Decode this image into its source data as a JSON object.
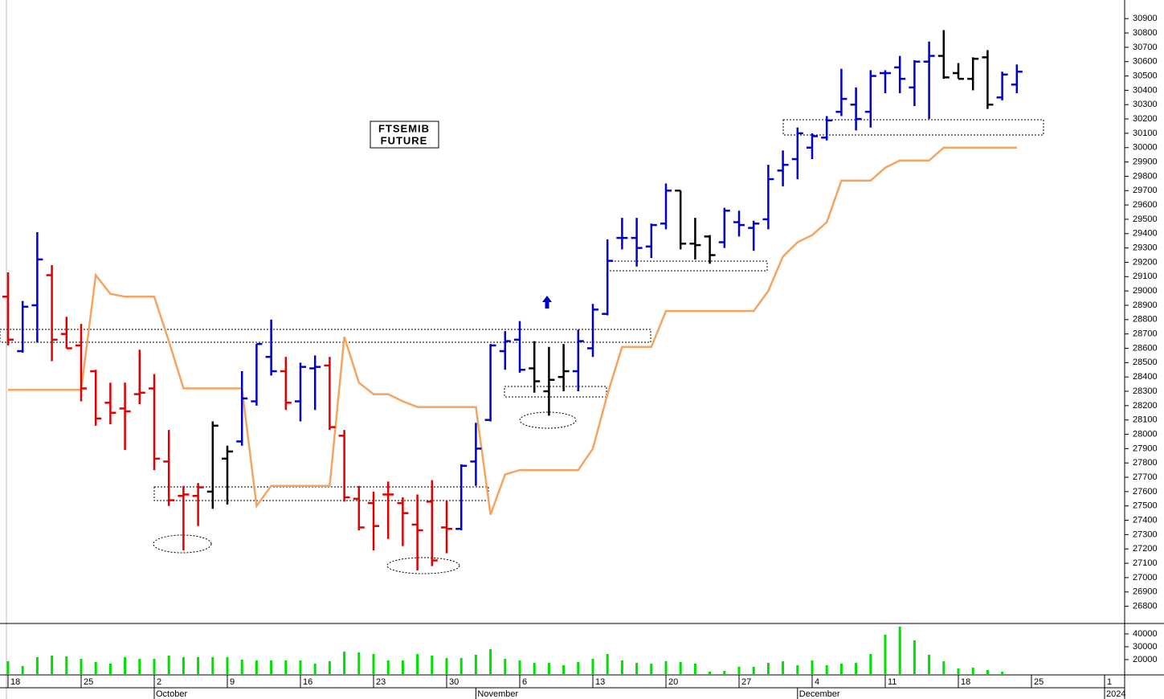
{
  "chart_data": {
    "type": "ohlc",
    "title": "FTSEMIB",
    "subtitle": "FUTURE",
    "categories": [
      "18",
      null,
      null,
      null,
      null,
      "25",
      null,
      null,
      null,
      null,
      "2",
      null,
      null,
      null,
      null,
      "9",
      null,
      null,
      null,
      null,
      "16",
      null,
      null,
      null,
      null,
      "23",
      null,
      null,
      null,
      null,
      "30",
      null,
      null,
      null,
      null,
      "6",
      null,
      null,
      null,
      null,
      "13",
      null,
      null,
      null,
      null,
      "20",
      null,
      null,
      null,
      null,
      "27",
      null,
      null,
      null,
      null,
      "4",
      null,
      null,
      null,
      null,
      "11",
      null,
      null,
      null,
      null,
      "18",
      null,
      null,
      null,
      null,
      "25",
      null,
      null,
      null,
      null,
      "1",
      null
    ],
    "months": [
      null,
      null,
      null,
      null,
      null,
      null,
      null,
      null,
      null,
      null,
      "October",
      null,
      null,
      null,
      null,
      null,
      null,
      null,
      null,
      null,
      null,
      null,
      null,
      null,
      null,
      null,
      null,
      null,
      null,
      null,
      null,
      null,
      "November",
      null,
      null,
      null,
      null,
      null,
      null,
      null,
      null,
      null,
      null,
      null,
      null,
      null,
      null,
      null,
      null,
      null,
      null,
      null,
      null,
      null,
      "December",
      null,
      null,
      null,
      null,
      null,
      null,
      null,
      null,
      null,
      null,
      null,
      null,
      null,
      null,
      null,
      null,
      null,
      null,
      null,
      null,
      "2024",
      null
    ],
    "open": [
      28960,
      28580,
      28900,
      29110,
      28700,
      28620,
      28440,
      28220,
      28180,
      28280,
      28320,
      27810,
      27570,
      27570,
      27600,
      27830,
      27950,
      28230,
      28540,
      28440,
      28230,
      28460,
      28480,
      27990,
      27550,
      27520,
      27580,
      27520,
      27370,
      27530,
      27350,
      27340,
      27810,
      28100,
      28580,
      28660,
      28460,
      28300,
      28400,
      28440,
      28600,
      28840,
      29370,
      29370,
      29310,
      29470,
      29700,
      29330,
      29380,
      29340,
      29480,
      29440,
      29500,
      29840,
      29920,
      30000,
      30070,
      30250,
      30300,
      30250,
      30520,
      30560,
      30420,
      30600,
      30640,
      30520,
      30480,
      30630,
      30350,
      30440,
      null,
      null,
      null,
      null,
      null,
      null,
      null
    ],
    "high": [
      29130,
      28930,
      29410,
      29180,
      28820,
      28770,
      28450,
      28360,
      28360,
      28590,
      28420,
      28030,
      27640,
      27660,
      28090,
      27920,
      28440,
      28630,
      28800,
      28540,
      28500,
      28550,
      28540,
      28030,
      27640,
      27600,
      27670,
      27560,
      27580,
      27680,
      27540,
      27790,
      28080,
      28630,
      28720,
      28790,
      28650,
      28610,
      28630,
      28730,
      28910,
      29360,
      29510,
      29510,
      29470,
      29750,
      29700,
      29510,
      29390,
      29580,
      29560,
      29490,
      29880,
      29980,
      30140,
      30100,
      30220,
      30550,
      30420,
      30540,
      30540,
      30640,
      30610,
      30740,
      30820,
      30590,
      30630,
      30680,
      30530,
      30580,
      null,
      null,
      null,
      null,
      null,
      null,
      null
    ],
    "low": [
      28620,
      28570,
      28640,
      28510,
      28600,
      28230,
      28060,
      28070,
      27890,
      28210,
      27750,
      27500,
      27190,
      27360,
      27480,
      27510,
      27920,
      28200,
      28410,
      28170,
      28090,
      28170,
      28030,
      27530,
      27330,
      27190,
      27270,
      27220,
      27050,
      27080,
      27170,
      27330,
      27640,
      28090,
      28450,
      28430,
      28290,
      28130,
      28300,
      28300,
      28540,
      28830,
      29290,
      29170,
      29230,
      29430,
      29290,
      29220,
      29190,
      29300,
      29380,
      29280,
      29430,
      29730,
      29780,
      29920,
      30050,
      30220,
      30120,
      30140,
      30380,
      30380,
      30290,
      30200,
      30480,
      30480,
      30400,
      30270,
      30330,
      30380,
      null,
      null,
      null,
      null,
      null,
      null,
      null
    ],
    "close": [
      28660,
      28890,
      29220,
      28660,
      28600,
      28320,
      28110,
      28150,
      28160,
      28290,
      27830,
      27540,
      27580,
      27630,
      28060,
      27880,
      28250,
      28630,
      28440,
      28220,
      28470,
      28470,
      28050,
      27560,
      27350,
      27360,
      27580,
      27450,
      27330,
      27120,
      27340,
      27780,
      27900,
      28620,
      28650,
      28450,
      28370,
      28380,
      28440,
      28650,
      28870,
      29210,
      29370,
      29300,
      29460,
      29700,
      29330,
      29320,
      29250,
      29560,
      29460,
      29470,
      29780,
      29880,
      30100,
      30080,
      30190,
      30340,
      30200,
      30500,
      30520,
      30480,
      30600,
      30640,
      30490,
      30480,
      30620,
      30300,
      30510,
      30530,
      null,
      null,
      null,
      null,
      null,
      null,
      null
    ],
    "bar_colors": [
      "#e00000",
      "#0000cc",
      "#0000cc",
      "#e00000",
      "#e00000",
      "#e00000",
      "#e00000",
      "#e00000",
      "#e00000",
      "#e00000",
      "#e00000",
      "#e00000",
      "#e00000",
      "#e00000",
      "#000000",
      "#000000",
      "#0000cc",
      "#0000cc",
      "#0000cc",
      "#e00000",
      "#0000cc",
      "#0000cc",
      "#e00000",
      "#e00000",
      "#e00000",
      "#e00000",
      "#e00000",
      "#e00000",
      "#e00000",
      "#e00000",
      "#e00000",
      "#0000cc",
      "#0000cc",
      "#0000cc",
      "#0000cc",
      "#0000cc",
      "#000000",
      "#000000",
      "#000000",
      "#0000cc",
      "#0000cc",
      "#0000cc",
      "#0000cc",
      "#0000cc",
      "#0000cc",
      "#0000cc",
      "#000000",
      "#000000",
      "#000000",
      "#0000cc",
      "#0000cc",
      "#0000cc",
      "#0000cc",
      "#0000cc",
      "#0000cc",
      "#0000cc",
      "#0000cc",
      "#0000cc",
      "#0000cc",
      "#0000cc",
      "#0000cc",
      "#0000cc",
      "#0000cc",
      "#0000cc",
      "#000000",
      "#000000",
      "#000000",
      "#000000",
      "#0000cc",
      "#0000cc",
      null,
      null,
      null,
      null,
      null,
      null,
      null
    ],
    "line": {
      "color": "#f4a460",
      "values": [
        28310,
        28310,
        28310,
        28310,
        28310,
        28310,
        29110,
        28980,
        28960,
        28960,
        28960,
        28650,
        28320,
        28320,
        28320,
        28320,
        28320,
        27500,
        27640,
        27640,
        27640,
        27640,
        27640,
        28680,
        28360,
        28280,
        28280,
        28230,
        28190,
        28190,
        28190,
        28190,
        28190,
        27440,
        27720,
        27750,
        27750,
        27750,
        27750,
        27750,
        27900,
        28280,
        28610,
        28610,
        28610,
        28860,
        28860,
        28860,
        28860,
        28860,
        28860,
        28860,
        29000,
        29240,
        29340,
        29390,
        29480,
        29770,
        29770,
        29770,
        29860,
        29910,
        29910,
        29910,
        30000,
        30000,
        30000,
        30000,
        30000,
        30000,
        null,
        null,
        null,
        null,
        null,
        null,
        null
      ]
    },
    "ylim": [
      26680,
      31030
    ],
    "yticks": [
      26800,
      26900,
      27000,
      27100,
      27200,
      27300,
      27400,
      27500,
      27600,
      27700,
      27800,
      27900,
      28000,
      28100,
      28200,
      28300,
      28400,
      28500,
      28600,
      28700,
      28800,
      28900,
      29000,
      29100,
      29200,
      29300,
      29400,
      29500,
      29600,
      29700,
      29800,
      29900,
      30000,
      30100,
      30200,
      30300,
      30400,
      30500,
      30600,
      30700,
      30800,
      30900
    ],
    "volume": {
      "color": "#00e000",
      "ylim": [
        8100,
        48100
      ],
      "yticks": [
        20000,
        30000,
        40000
      ],
      "values": [
        18750,
        15000,
        21900,
        23100,
        22500,
        20600,
        18100,
        16900,
        21900,
        20600,
        20600,
        23100,
        21900,
        21900,
        21900,
        21900,
        20000,
        19400,
        19400,
        19400,
        19400,
        16900,
        18750,
        26250,
        25600,
        24400,
        19400,
        19400,
        24400,
        23100,
        21250,
        21250,
        23750,
        28100,
        20600,
        19400,
        17500,
        17500,
        15600,
        18100,
        20600,
        24400,
        19400,
        17500,
        16900,
        18750,
        18100,
        16900,
        10600,
        11250,
        14400,
        14400,
        17500,
        18750,
        15600,
        19400,
        15600,
        16900,
        17500,
        24400,
        39400,
        45600,
        35000,
        23750,
        18750,
        13100,
        13750,
        11900,
        10600,
        8750,
        null,
        null,
        null,
        null,
        null,
        null,
        null
      ]
    }
  }
}
